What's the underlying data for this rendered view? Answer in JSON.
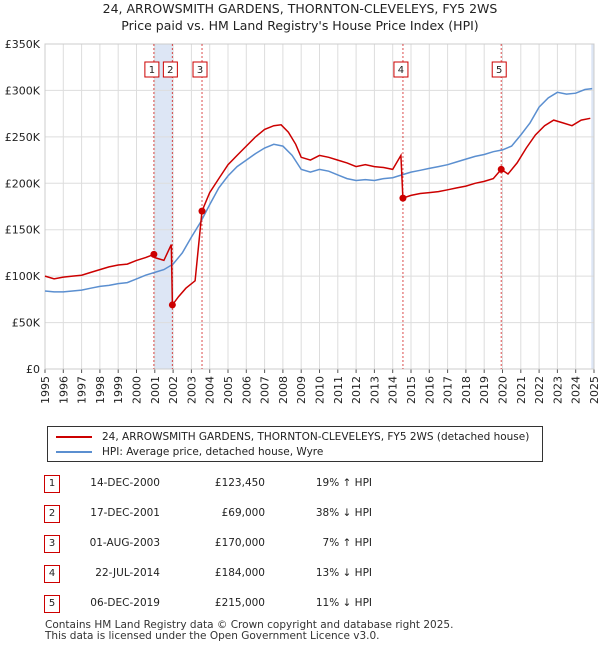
{
  "title_line1": "24, ARROWSMITH GARDENS, THORNTON-CLEVELEYS, FY5 2WS",
  "title_line2": "Price paid vs. HM Land Registry's House Price Index (HPI)",
  "colors": {
    "property": "#cc0000",
    "hpi": "#5b8fd0",
    "shade": "#dde6f5"
  },
  "chart_data": {
    "type": "line",
    "title": "24, ARROWSMITH GARDENS, THORNTON-CLEVELEYS, FY5 2WS",
    "subtitle": "Price paid vs. HM Land Registry's House Price Index (HPI)",
    "xlim": [
      1995,
      2025
    ],
    "ylim": [
      0,
      350000
    ],
    "x_ticks": [
      "1995",
      "1996",
      "1997",
      "1998",
      "1999",
      "2000",
      "2001",
      "2002",
      "2003",
      "2004",
      "2005",
      "2006",
      "2007",
      "2008",
      "2009",
      "2010",
      "2011",
      "2012",
      "2013",
      "2014",
      "2015",
      "2016",
      "2017",
      "2018",
      "2019",
      "2020",
      "2021",
      "2022",
      "2023",
      "2024",
      "2025"
    ],
    "y_ticks": [
      {
        "value": 0,
        "label": "£0"
      },
      {
        "value": 50000,
        "label": "£50K"
      },
      {
        "value": 100000,
        "label": "£100K"
      },
      {
        "value": 150000,
        "label": "£150K"
      },
      {
        "value": 200000,
        "label": "£200K"
      },
      {
        "value": 250000,
        "label": "£250K"
      },
      {
        "value": 300000,
        "label": "£300K"
      },
      {
        "value": 350000,
        "label": "£350K"
      }
    ],
    "grid": true,
    "series": [
      {
        "name": "24, ARROWSMITH GARDENS, THORNTON-CLEVELEYS, FY5 2WS (detached house)",
        "color": "#cc0000",
        "points": [
          [
            1995,
            100000
          ],
          [
            1995.5,
            97000
          ],
          [
            1996,
            99000
          ],
          [
            1996.5,
            100000
          ],
          [
            1997,
            101000
          ],
          [
            1997.5,
            104000
          ],
          [
            1998,
            107000
          ],
          [
            1998.5,
            110000
          ],
          [
            1999,
            112000
          ],
          [
            1999.5,
            113000
          ],
          [
            2000,
            117000
          ],
          [
            2000.5,
            120000
          ],
          [
            2000.95,
            123450
          ],
          [
            2001,
            120000
          ],
          [
            2001.5,
            117000
          ],
          [
            2001.9,
            134000
          ],
          [
            2001.96,
            69000
          ],
          [
            2002.3,
            78000
          ],
          [
            2002.7,
            87000
          ],
          [
            2003.2,
            95000
          ],
          [
            2003.58,
            170000
          ],
          [
            2004,
            190000
          ],
          [
            2004.5,
            205000
          ],
          [
            2005,
            220000
          ],
          [
            2005.5,
            230000
          ],
          [
            2006,
            240000
          ],
          [
            2006.5,
            250000
          ],
          [
            2007,
            258000
          ],
          [
            2007.5,
            262000
          ],
          [
            2007.9,
            263000
          ],
          [
            2008.3,
            255000
          ],
          [
            2008.7,
            242000
          ],
          [
            2009,
            228000
          ],
          [
            2009.5,
            225000
          ],
          [
            2010,
            230000
          ],
          [
            2010.5,
            228000
          ],
          [
            2011,
            225000
          ],
          [
            2011.5,
            222000
          ],
          [
            2012,
            218000
          ],
          [
            2012.5,
            220000
          ],
          [
            2013,
            218000
          ],
          [
            2013.5,
            217000
          ],
          [
            2014,
            215000
          ],
          [
            2014.45,
            230000
          ],
          [
            2014.56,
            184000
          ],
          [
            2015,
            187000
          ],
          [
            2015.5,
            189000
          ],
          [
            2016,
            190000
          ],
          [
            2016.5,
            191000
          ],
          [
            2017,
            193000
          ],
          [
            2017.5,
            195000
          ],
          [
            2018,
            197000
          ],
          [
            2018.5,
            200000
          ],
          [
            2019,
            202000
          ],
          [
            2019.5,
            205000
          ],
          [
            2019.93,
            215000
          ],
          [
            2020.3,
            210000
          ],
          [
            2020.8,
            222000
          ],
          [
            2021.3,
            238000
          ],
          [
            2021.8,
            252000
          ],
          [
            2022.3,
            262000
          ],
          [
            2022.8,
            268000
          ],
          [
            2023.3,
            265000
          ],
          [
            2023.8,
            262000
          ],
          [
            2024.3,
            268000
          ],
          [
            2024.8,
            270000
          ]
        ]
      },
      {
        "name": "HPI: Average price, detached house, Wyre",
        "color": "#5b8fd0",
        "points": [
          [
            1995,
            84000
          ],
          [
            1995.5,
            83000
          ],
          [
            1996,
            83000
          ],
          [
            1996.5,
            84000
          ],
          [
            1997,
            85000
          ],
          [
            1997.5,
            87000
          ],
          [
            1998,
            89000
          ],
          [
            1998.5,
            90000
          ],
          [
            1999,
            92000
          ],
          [
            1999.5,
            93000
          ],
          [
            2000,
            97000
          ],
          [
            2000.5,
            101000
          ],
          [
            2001,
            104000
          ],
          [
            2001.5,
            107000
          ],
          [
            2002,
            113000
          ],
          [
            2002.5,
            125000
          ],
          [
            2003,
            142000
          ],
          [
            2003.5,
            158000
          ],
          [
            2004,
            177000
          ],
          [
            2004.5,
            195000
          ],
          [
            2005,
            208000
          ],
          [
            2005.5,
            218000
          ],
          [
            2006,
            225000
          ],
          [
            2006.5,
            232000
          ],
          [
            2007,
            238000
          ],
          [
            2007.5,
            242000
          ],
          [
            2008,
            240000
          ],
          [
            2008.5,
            230000
          ],
          [
            2009,
            215000
          ],
          [
            2009.5,
            212000
          ],
          [
            2010,
            215000
          ],
          [
            2010.5,
            213000
          ],
          [
            2011,
            209000
          ],
          [
            2011.5,
            205000
          ],
          [
            2012,
            203000
          ],
          [
            2012.5,
            204000
          ],
          [
            2013,
            203000
          ],
          [
            2013.5,
            205000
          ],
          [
            2014,
            206000
          ],
          [
            2014.5,
            209000
          ],
          [
            2015,
            212000
          ],
          [
            2015.5,
            214000
          ],
          [
            2016,
            216000
          ],
          [
            2016.5,
            218000
          ],
          [
            2017,
            220000
          ],
          [
            2017.5,
            223000
          ],
          [
            2018,
            226000
          ],
          [
            2018.5,
            229000
          ],
          [
            2019,
            231000
          ],
          [
            2019.5,
            234000
          ],
          [
            2020,
            236000
          ],
          [
            2020.5,
            240000
          ],
          [
            2021,
            252000
          ],
          [
            2021.5,
            265000
          ],
          [
            2022,
            282000
          ],
          [
            2022.5,
            292000
          ],
          [
            2023,
            298000
          ],
          [
            2023.5,
            296000
          ],
          [
            2024,
            297000
          ],
          [
            2024.5,
            301000
          ],
          [
            2024.9,
            302000
          ]
        ]
      }
    ],
    "sales": [
      {
        "label": "1",
        "x": 2000.95,
        "y": 123450
      },
      {
        "label": "2",
        "x": 2001.96,
        "y": 69000
      },
      {
        "label": "3",
        "x": 2003.58,
        "y": 170000
      },
      {
        "label": "4",
        "x": 2014.56,
        "y": 184000
      },
      {
        "label": "5",
        "x": 2019.93,
        "y": 215000
      }
    ],
    "shaded_ranges": [
      [
        2000.95,
        2001.96
      ],
      [
        2024.85,
        2025
      ]
    ]
  },
  "legend": [
    {
      "label": "24, ARROWSMITH GARDENS, THORNTON-CLEVELEYS, FY5 2WS (detached house)",
      "color": "#cc0000"
    },
    {
      "label": "HPI: Average price, detached house, Wyre",
      "color": "#5b8fd0"
    }
  ],
  "transactions": [
    {
      "num": "1",
      "date": "14-DEC-2000",
      "price": "£123,450",
      "hpi": "19% ↑ HPI"
    },
    {
      "num": "2",
      "date": "17-DEC-2001",
      "price": "£69,000",
      "hpi": "38% ↓ HPI"
    },
    {
      "num": "3",
      "date": "01-AUG-2003",
      "price": "£170,000",
      "hpi": "7% ↑ HPI"
    },
    {
      "num": "4",
      "date": "22-JUL-2014",
      "price": "£184,000",
      "hpi": "13% ↓ HPI"
    },
    {
      "num": "5",
      "date": "06-DEC-2019",
      "price": "£215,000",
      "hpi": "11% ↓ HPI"
    }
  ],
  "footer_line1": "Contains HM Land Registry data © Crown copyright and database right 2025.",
  "footer_line2": "This data is licensed under the Open Government Licence v3.0."
}
